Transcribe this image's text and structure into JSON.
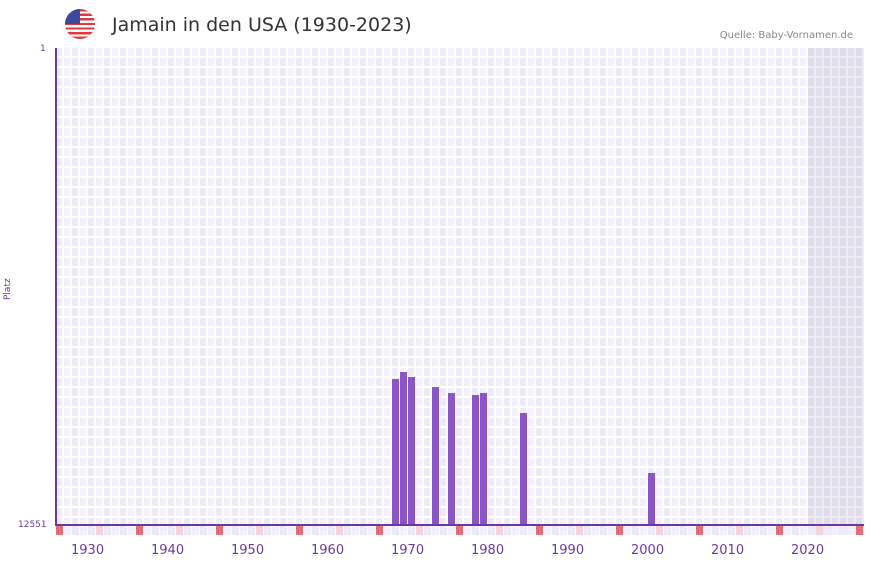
{
  "header": {
    "title": "Jamain in den USA (1930-2023)",
    "source": "Quelle: Baby-Vornamen.de",
    "flag_icon": "us-flag-icon"
  },
  "colors": {
    "bar": "#8a55c5",
    "axis": "#6a3aa0",
    "marker_decade": "#e07078",
    "marker_half": "#f5d5dd",
    "col_a": "#efeafa",
    "col_b": "#f4f1fc"
  },
  "chart_data": {
    "type": "bar",
    "title": "Jamain in den USA (1930-2023)",
    "xlabel": "",
    "ylabel": "Platz",
    "y_inverted": true,
    "ylim": [
      1,
      12551
    ],
    "y_tick_labels": [
      "1",
      "12551"
    ],
    "x_tick_labels": [
      "1930",
      "1940",
      "1950",
      "1960",
      "1970",
      "1980",
      "1990",
      "2000",
      "2010",
      "2020"
    ],
    "x_range": [
      1928,
      2028
    ],
    "grid": true,
    "categories": [
      1970,
      1971,
      1972,
      1975,
      1977,
      1980,
      1981,
      1986,
      2002
    ],
    "values": [
      8710,
      8525,
      8657,
      8920,
      9078,
      9131,
      9078,
      9604,
      11183
    ]
  }
}
